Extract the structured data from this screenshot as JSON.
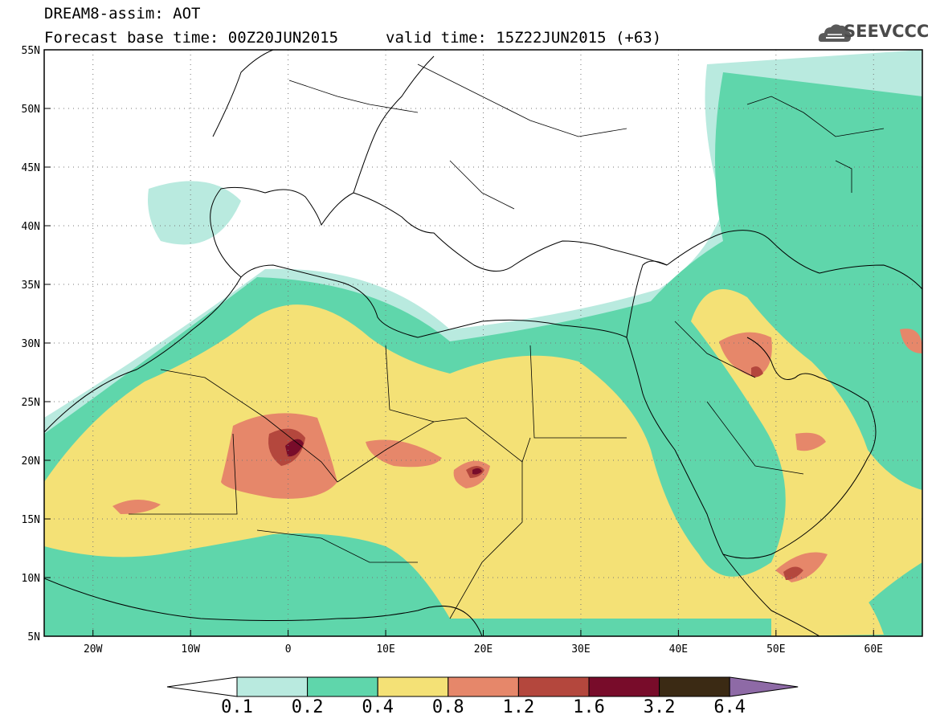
{
  "header": {
    "line1": "DREAM8-assim: AOT",
    "line2": "Forecast base time: 00Z20JUN2015",
    "valid": "valid time: 15Z22JUN2015 (+63)",
    "logo_text": "SEEVCCC",
    "logo_icon": "cloud-icon"
  },
  "map": {
    "lon_range": [
      -25,
      65
    ],
    "lat_range": [
      5,
      55
    ],
    "lon_ticks": [
      "20W",
      "10W",
      "0",
      "10E",
      "20E",
      "30E",
      "40E",
      "50E",
      "60E"
    ],
    "lat_ticks": [
      "55N",
      "50N",
      "45N",
      "40N",
      "35N",
      "30N",
      "25N",
      "20N",
      "15N",
      "10N",
      "5N"
    ],
    "grid": "dotted"
  },
  "colorbar": {
    "labels": [
      "0.1",
      "0.2",
      "0.4",
      "0.8",
      "1.2",
      "1.6",
      "3.2",
      "6.4"
    ],
    "colors": [
      "#ffffff",
      "#b9eadf",
      "#5fd6ab",
      "#f4e176",
      "#e6876a",
      "#b4473d",
      "#780c2a",
      "#3b2a14",
      "#8e6aa6"
    ]
  },
  "chart_data": {
    "type": "heatmap",
    "title": "DREAM8-assim: AOT",
    "subtitle": "Forecast base time: 00Z20JUN2015   valid time: 15Z22JUN2015 (+63)",
    "xlabel": "",
    "ylabel": "",
    "x_range": [
      -25,
      65
    ],
    "y_range": [
      5,
      55
    ],
    "levels": [
      0.1,
      0.2,
      0.4,
      0.8,
      1.2,
      1.6,
      3.2,
      6.4
    ],
    "maxima": [
      {
        "lon": 1,
        "lat": 21.5,
        "value": 1.6
      },
      {
        "lon": 19.5,
        "lat": 19.2,
        "value": 1.6
      },
      {
        "lon": 51,
        "lat": 10.5,
        "value": 1.2
      },
      {
        "lon": 41,
        "lat": 26.5,
        "value": 1.2
      }
    ]
  }
}
